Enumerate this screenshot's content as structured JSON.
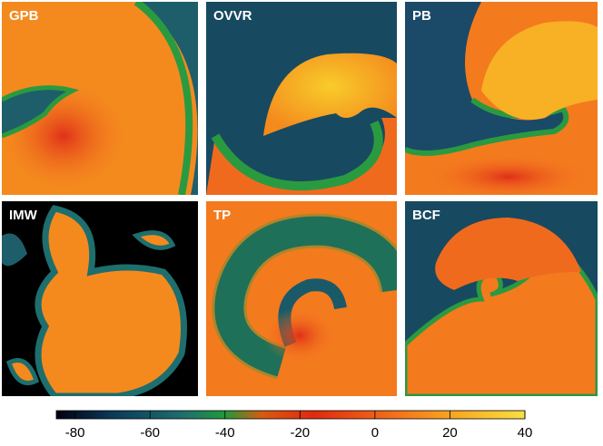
{
  "panels": [
    "GPB",
    "OVVR",
    "PB",
    "IMW",
    "TP",
    "BCF"
  ],
  "colorbar": {
    "range": [
      -85,
      40
    ],
    "ticks": [
      -80,
      -60,
      -40,
      -20,
      0,
      20,
      40
    ]
  }
}
